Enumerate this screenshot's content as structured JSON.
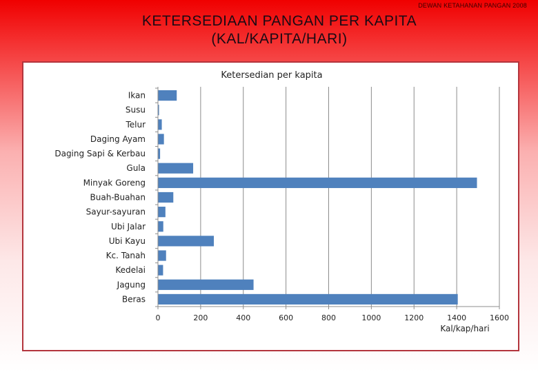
{
  "header": {
    "credit": "DEWAN KETAHANAN PANGAN 2008",
    "title_line1": "KETERSEDIAAN PANGAN PER KAPITA",
    "title_line2": "(KAL/KAPITA/HARI)"
  },
  "chart_data": {
    "type": "bar",
    "orientation": "horizontal",
    "title": "Ketersedian per kapita",
    "xlabel": "Kal/kap/hari",
    "ylabel": "",
    "xlim": [
      0,
      1600
    ],
    "xticks": [
      0,
      200,
      400,
      600,
      800,
      1000,
      1200,
      1400,
      1600
    ],
    "grid": "vertical",
    "bar_color": "#4f81bd",
    "categories": [
      "Ikan",
      "Susu",
      "Telur",
      "Daging Ayam",
      "Daging Sapi & Kerbau",
      "Gula",
      "Minyak Goreng",
      "Buah-Buahan",
      "Sayur-sayuran",
      "Ubi Jalar",
      "Ubi Kayu",
      "Kc. Tanah",
      "Kedelai",
      "Jagung",
      "Beras"
    ],
    "values": [
      88,
      5,
      18,
      28,
      10,
      165,
      1495,
      72,
      35,
      25,
      262,
      38,
      24,
      448,
      1405
    ]
  }
}
